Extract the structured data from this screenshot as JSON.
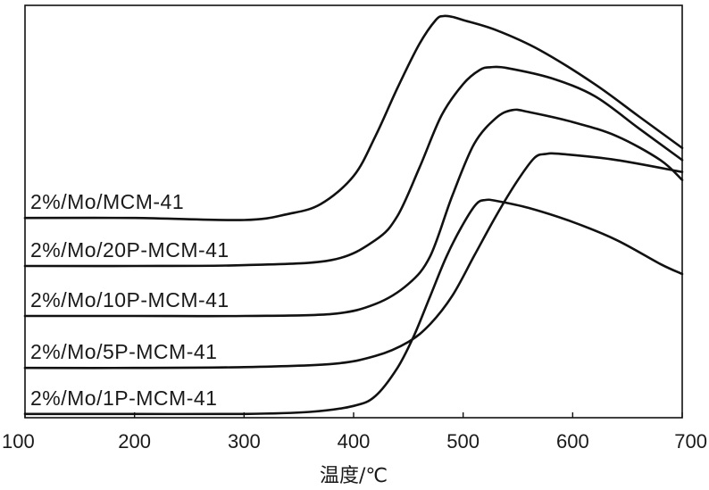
{
  "chart_data": {
    "type": "line",
    "xlabel": "温度/℃",
    "ylabel": "",
    "xlim": [
      100,
      700
    ],
    "ylim": [
      0,
      100
    ],
    "xticks": [
      100,
      200,
      300,
      400,
      500,
      600,
      700
    ],
    "yticks": false,
    "grid": false,
    "legend": "inline labels at left",
    "series": [
      {
        "name": "2%/Mo/MCM-41",
        "x": [
          100,
          200,
          300,
          340,
          370,
          400,
          420,
          440,
          460,
          475,
          482,
          490,
          500,
          530,
          570,
          620,
          660,
          700
        ],
        "y": [
          49.5,
          49.5,
          49.0,
          50.5,
          53.0,
          60.0,
          70.0,
          82.0,
          93.0,
          99.0,
          100.0,
          99.8,
          99.0,
          96.5,
          91.5,
          83.0,
          75.0,
          67.0
        ]
      },
      {
        "name": "2%/Mo/20P-MCM-41",
        "x": [
          100,
          200,
          300,
          380,
          420,
          440,
          460,
          480,
          500,
          515,
          525,
          540,
          580,
          620,
          660,
          700
        ],
        "y": [
          37.5,
          37.5,
          37.7,
          39.0,
          44.0,
          50.0,
          62.0,
          75.0,
          83.0,
          86.5,
          87.2,
          87.0,
          84.5,
          80.0,
          72.0,
          64.0
        ]
      },
      {
        "name": "2%/Mo/10P-MCM-41",
        "x": [
          100,
          200,
          300,
          380,
          420,
          450,
          470,
          490,
          510,
          530,
          545,
          560,
          600,
          640,
          680,
          700
        ],
        "y": [
          25.0,
          25.0,
          25.0,
          25.5,
          28.0,
          33.0,
          40.0,
          55.0,
          68.0,
          74.5,
          76.5,
          76.0,
          73.5,
          70.0,
          64.0,
          59.0
        ]
      },
      {
        "name": "2%/Mo/5P-MCM-41",
        "x": [
          100,
          200,
          300,
          380,
          420,
          450,
          470,
          490,
          510,
          530,
          550,
          565,
          575,
          590,
          640,
          700
        ],
        "y": [
          12.0,
          12.0,
          12.2,
          13.0,
          15.0,
          18.5,
          23.0,
          30.0,
          40.0,
          50.0,
          59.0,
          64.5,
          65.5,
          65.5,
          64.0,
          61.0
        ]
      },
      {
        "name": "2%/Mo/1P-MCM-41",
        "x": [
          100,
          200,
          300,
          360,
          400,
          420,
          440,
          455,
          470,
          485,
          500,
          512,
          520,
          530,
          560,
          600,
          640,
          680,
          700
        ],
        "y": [
          0.5,
          0.5,
          0.5,
          1.0,
          2.5,
          5.0,
          12.0,
          20.0,
          30.0,
          40.0,
          48.0,
          53.0,
          54.0,
          53.8,
          52.0,
          48.5,
          44.0,
          38.0,
          35.5
        ]
      }
    ]
  }
}
